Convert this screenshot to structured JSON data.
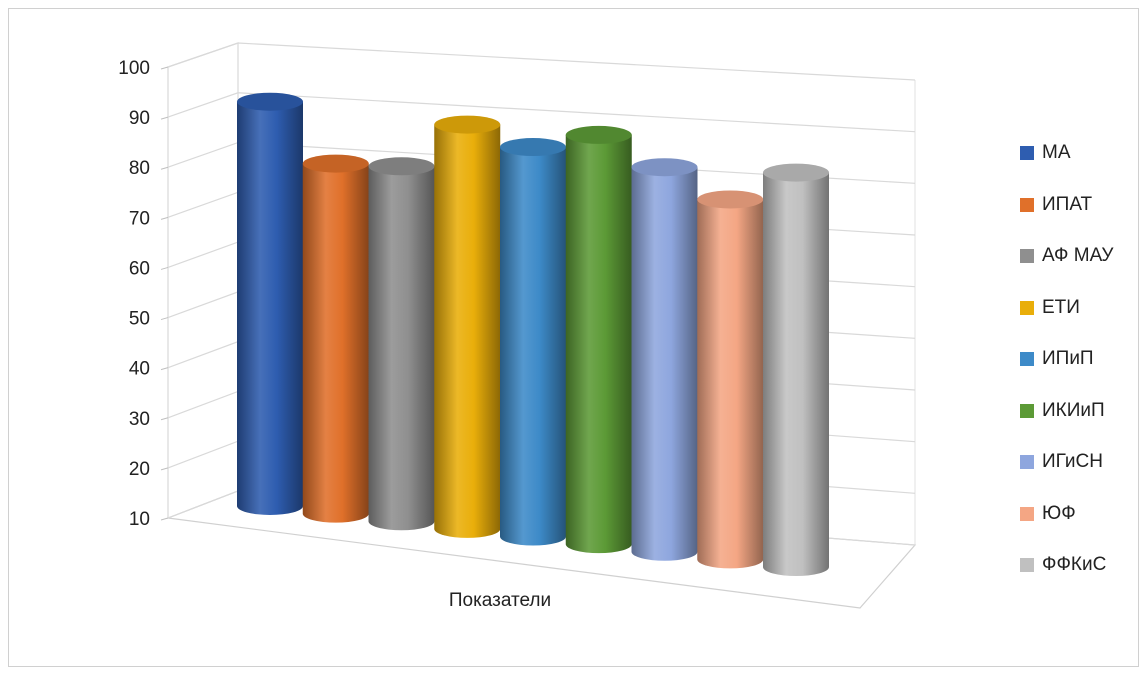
{
  "chart_data": {
    "type": "bar",
    "style": "3d-cylinder",
    "categories": [
      "Показатели"
    ],
    "series": [
      {
        "name": "МА",
        "values": [
          92
        ],
        "color": "#2E5DB0"
      },
      {
        "name": "ИПАТ",
        "values": [
          81
        ],
        "color": "#E0702A"
      },
      {
        "name": "АФ МАУ",
        "values": [
          82
        ],
        "color": "#8F8F8F"
      },
      {
        "name": "ЕТИ",
        "values": [
          92
        ],
        "color": "#E9AE0A"
      },
      {
        "name": "ИПиП",
        "values": [
          89
        ],
        "color": "#3D8AC8"
      },
      {
        "name": "ИКИиП",
        "values": [
          93
        ],
        "color": "#5C9A36"
      },
      {
        "name": "ИГиСН",
        "values": [
          88
        ],
        "color": "#8EA6DE"
      },
      {
        "name": "ЮФ",
        "values": [
          83
        ],
        "color": "#F4A684"
      },
      {
        "name": "ФФКиС",
        "values": [
          90
        ],
        "color": "#C0C0C0"
      }
    ],
    "xlabel": "Показатели",
    "ylabel": "",
    "ylim": [
      10,
      100
    ],
    "yticks": [
      10,
      20,
      30,
      40,
      50,
      60,
      70,
      80,
      90,
      100
    ],
    "grid": true,
    "legend": "right"
  }
}
